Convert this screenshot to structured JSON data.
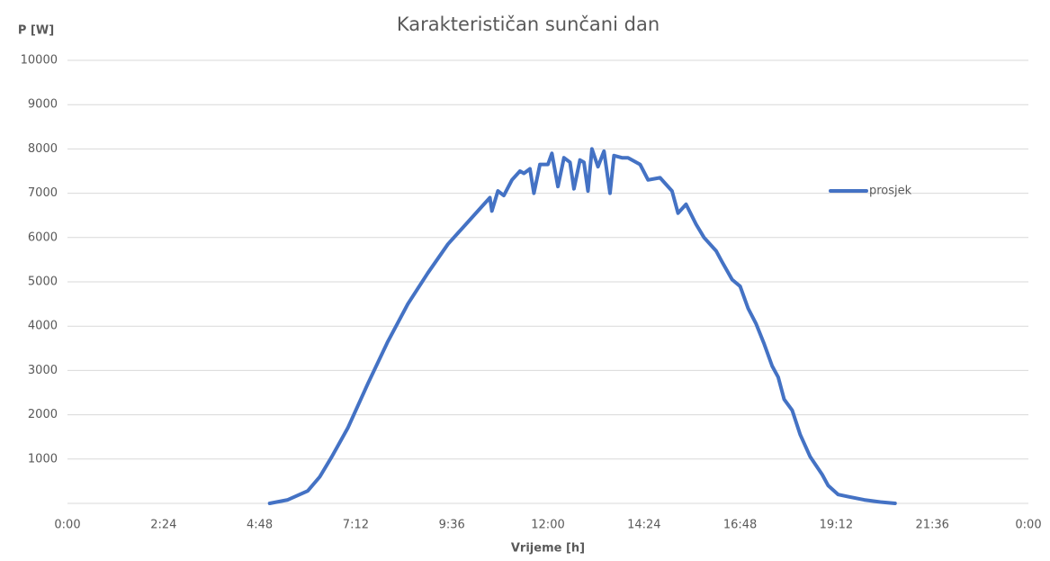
{
  "chart_data": {
    "type": "line",
    "title": "Karakterističan sunčani dan",
    "y_label": "P [W]",
    "x_label": "Vrijeme [h]",
    "x": [
      5.05,
      5.5,
      6.0,
      6.3,
      6.6,
      7.0,
      7.5,
      8.0,
      8.5,
      9.0,
      9.5,
      10.0,
      10.4,
      10.55,
      10.6,
      10.75,
      10.9,
      11.1,
      11.3,
      11.4,
      11.55,
      11.65,
      11.8,
      12.0,
      12.1,
      12.25,
      12.4,
      12.55,
      12.65,
      12.8,
      12.9,
      13.0,
      13.1,
      13.25,
      13.4,
      13.55,
      13.65,
      13.85,
      14.0,
      14.3,
      14.5,
      14.8,
      15.1,
      15.25,
      15.45,
      15.7,
      15.9,
      16.2,
      16.35,
      16.6,
      16.8,
      17.0,
      17.2,
      17.4,
      17.6,
      17.75,
      17.9,
      18.1,
      18.3,
      18.55,
      18.85,
      19.0,
      19.25,
      19.5,
      19.9,
      20.3,
      20.67
    ],
    "series": [
      {
        "name": "prosjek",
        "color": "#4472c4",
        "values": [
          0,
          80,
          280,
          600,
          1050,
          1700,
          2700,
          3650,
          4500,
          5200,
          5850,
          6350,
          6750,
          6900,
          6600,
          7050,
          6950,
          7300,
          7500,
          7450,
          7550,
          7000,
          7650,
          7650,
          7900,
          7150,
          7800,
          7700,
          7100,
          7750,
          7700,
          7050,
          8000,
          7600,
          7950,
          7000,
          7850,
          7800,
          7800,
          7650,
          7300,
          7350,
          7050,
          6550,
          6750,
          6300,
          6000,
          5700,
          5450,
          5050,
          4900,
          4400,
          4050,
          3600,
          3100,
          2850,
          2350,
          2100,
          1550,
          1050,
          650,
          400,
          200,
          150,
          80,
          30,
          0
        ]
      }
    ],
    "xlim": [
      0,
      24
    ],
    "xticks": [
      {
        "value": 0,
        "label": "0:00"
      },
      {
        "value": 2.4,
        "label": "2:24"
      },
      {
        "value": 4.8,
        "label": "4:48"
      },
      {
        "value": 7.2,
        "label": "7:12"
      },
      {
        "value": 9.6,
        "label": "9:36"
      },
      {
        "value": 12,
        "label": "12:00"
      },
      {
        "value": 14.4,
        "label": "14:24"
      },
      {
        "value": 16.8,
        "label": "16:48"
      },
      {
        "value": 19.2,
        "label": "19:12"
      },
      {
        "value": 21.6,
        "label": "21:36"
      },
      {
        "value": 24,
        "label": "0:00"
      }
    ],
    "ylim": [
      0,
      10000
    ],
    "yticks": [
      1000,
      2000,
      3000,
      4000,
      5000,
      6000,
      7000,
      8000,
      9000,
      10000
    ],
    "grid": true,
    "legend": "right"
  }
}
